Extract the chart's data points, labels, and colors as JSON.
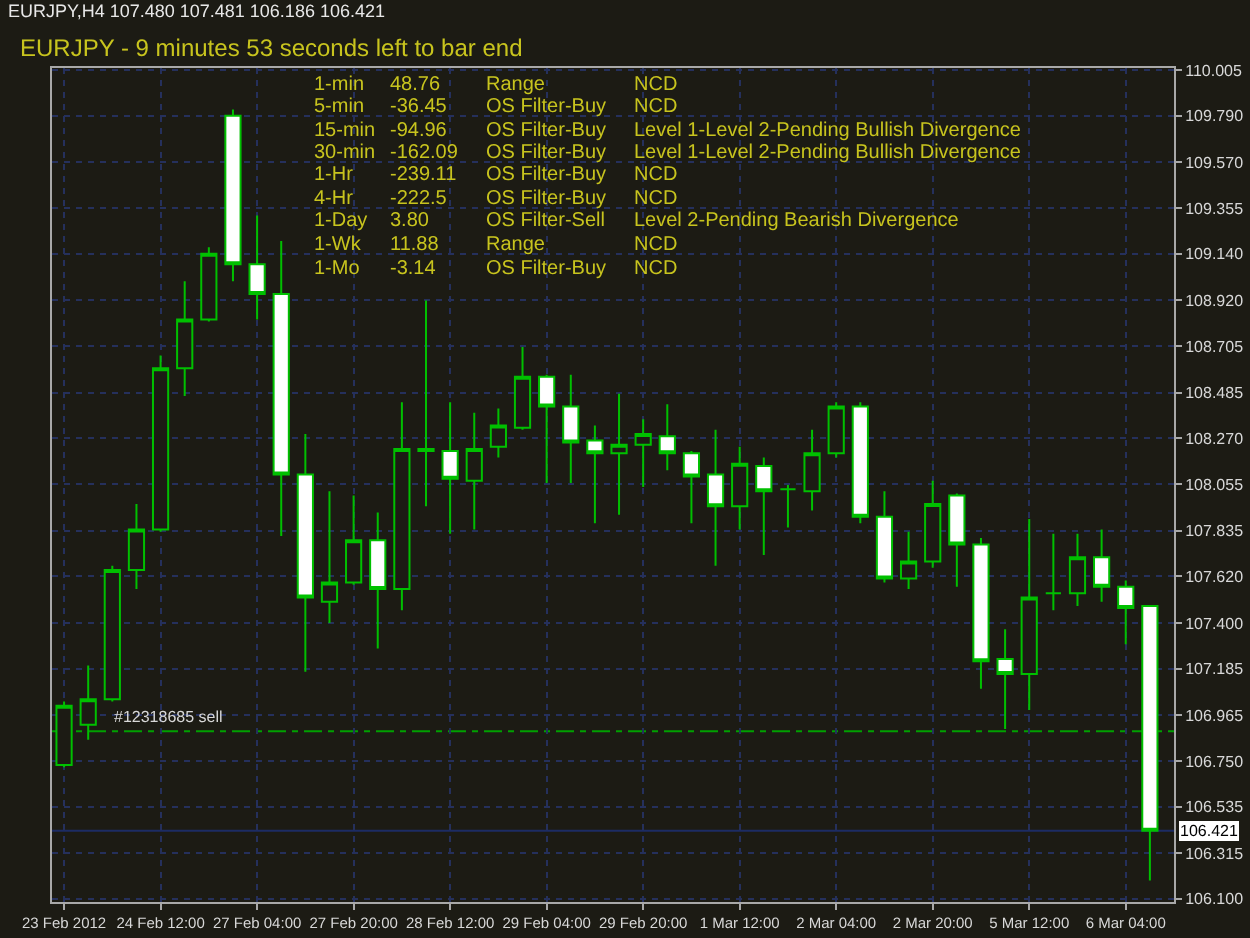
{
  "chart_data": {
    "type": "candlestick",
    "title": "EURJPY,H4 107.480 107.481 106.186 106.421",
    "subtitle": "EURJPY - 9 minutes 53 seconds left to bar end",
    "categories": [
      "23 Feb 2012",
      null,
      null,
      null,
      "24 Feb 12:00",
      null,
      null,
      null,
      "27 Feb 04:00",
      null,
      null,
      null,
      "27 Feb 20:00",
      null,
      null,
      null,
      "28 Feb 12:00",
      null,
      null,
      null,
      "29 Feb 04:00",
      null,
      null,
      null,
      "29 Feb 20:00",
      null,
      null,
      null,
      "1 Mar 12:00",
      null,
      null,
      null,
      "2 Mar 04:00",
      null,
      null,
      null,
      "2 Mar 20:00",
      null,
      null,
      null,
      "5 Mar 12:00",
      null,
      null,
      null,
      "6 Mar 04:00",
      null
    ],
    "ohlc": [
      [
        106.73,
        107.03,
        106.72,
        107.01
      ],
      [
        106.92,
        107.2,
        106.85,
        107.04
      ],
      [
        107.04,
        107.67,
        107.03,
        107.65
      ],
      [
        107.65,
        107.96,
        107.56,
        107.84
      ],
      [
        107.84,
        108.66,
        107.83,
        108.6
      ],
      [
        108.6,
        109.01,
        108.47,
        108.83
      ],
      [
        108.83,
        109.17,
        108.82,
        109.14
      ],
      [
        109.79,
        109.82,
        109.01,
        109.09
      ],
      [
        109.09,
        109.32,
        108.83,
        108.95
      ],
      [
        108.95,
        109.2,
        107.81,
        108.1
      ],
      [
        108.1,
        108.29,
        107.17,
        107.52
      ],
      [
        107.5,
        108.02,
        107.4,
        107.59
      ],
      [
        107.59,
        108.0,
        107.58,
        107.79
      ],
      [
        107.79,
        107.92,
        107.28,
        107.56
      ],
      [
        107.56,
        108.44,
        107.46,
        108.22
      ],
      [
        108.22,
        108.92,
        107.95,
        108.21
      ],
      [
        108.21,
        108.44,
        107.82,
        108.08
      ],
      [
        108.07,
        108.39,
        107.84,
        108.22
      ],
      [
        108.23,
        108.41,
        108.18,
        108.33
      ],
      [
        108.32,
        108.7,
        108.31,
        108.56
      ],
      [
        108.56,
        108.57,
        108.06,
        108.42
      ],
      [
        108.42,
        108.57,
        108.06,
        108.25
      ],
      [
        108.26,
        108.33,
        107.87,
        108.2
      ],
      [
        108.2,
        108.48,
        107.91,
        108.24
      ],
      [
        108.24,
        108.36,
        108.04,
        108.29
      ],
      [
        108.28,
        108.43,
        108.12,
        108.2
      ],
      [
        108.2,
        108.21,
        107.87,
        108.09
      ],
      [
        108.1,
        108.31,
        107.67,
        107.95
      ],
      [
        107.95,
        108.23,
        107.84,
        108.15
      ],
      [
        108.14,
        108.18,
        107.72,
        108.02
      ],
      [
        108.03,
        108.05,
        107.85,
        108.03
      ],
      [
        108.02,
        108.31,
        107.93,
        108.2
      ],
      [
        108.2,
        108.44,
        108.18,
        108.42
      ],
      [
        108.42,
        108.44,
        107.87,
        107.9
      ],
      [
        107.9,
        108.02,
        107.59,
        107.61
      ],
      [
        107.61,
        107.83,
        107.56,
        107.69
      ],
      [
        107.69,
        108.07,
        107.66,
        107.96
      ],
      [
        108.0,
        108.01,
        107.57,
        107.77
      ],
      [
        107.77,
        107.8,
        107.09,
        107.22
      ],
      [
        107.23,
        107.37,
        106.9,
        107.16
      ],
      [
        107.16,
        107.89,
        106.99,
        107.52
      ],
      [
        107.54,
        107.82,
        107.46,
        107.54
      ],
      [
        107.54,
        107.82,
        107.48,
        107.71
      ],
      [
        107.71,
        107.84,
        107.5,
        107.57
      ],
      [
        107.57,
        107.6,
        107.3,
        107.47
      ],
      [
        107.48,
        107.481,
        106.186,
        106.421
      ]
    ],
    "color": "#00c000",
    "colors": [
      "#1c1b14",
      "#1c1b14",
      "#1c1b14",
      "#1c1b14",
      "#1c1b14",
      "#1c1b14",
      "#1c1b14",
      "#ffffff",
      "#ffffff",
      "#ffffff",
      "#ffffff",
      "#1c1b14",
      "#1c1b14",
      "#ffffff",
      "#1c1b14",
      "#00c000",
      "#ffffff",
      "#1c1b14",
      "#1c1b14",
      "#1c1b14",
      "#ffffff",
      "#ffffff",
      "#ffffff",
      "#1c1b14",
      "#1c1b14",
      "#ffffff",
      "#ffffff",
      "#ffffff",
      "#1c1b14",
      "#ffffff",
      "#00c000",
      "#1c1b14",
      "#1c1b14",
      "#ffffff",
      "#ffffff",
      "#1c1b14",
      "#1c1b14",
      "#ffffff",
      "#ffffff",
      "#ffffff",
      "#1c1b14",
      "#00c000",
      "#1c1b14",
      "#ffffff",
      "#ffffff",
      "#ffffff"
    ],
    "ylim": [
      106.085,
      110.015
    ],
    "yticks": [
      110.005,
      {
        "value": 109.79,
        "label": "109.790"
      },
      {
        "value": 109.57,
        "label": "109.570"
      },
      109.355,
      {
        "value": 109.14,
        "label": "109.140"
      },
      {
        "value": 108.92,
        "label": "108.920"
      },
      108.705,
      108.485,
      {
        "value": 108.27,
        "label": "108.270"
      },
      108.055,
      107.835,
      {
        "value": 107.62,
        "label": "107.620"
      },
      {
        "value": 107.4,
        "label": "107.400"
      },
      107.185,
      106.965,
      {
        "value": 106.75,
        "label": "106.750"
      },
      106.535,
      106.315,
      {
        "value": 106.1,
        "label": "106.100"
      }
    ],
    "grid": true,
    "ref_lines": [
      {
        "axis": "y",
        "value": 106.89,
        "label": "#12318685 sell",
        "color": "#00a000",
        "line_style": "dashed"
      },
      {
        "axis": "y",
        "value": 106.421,
        "label": "106.421",
        "color": "#1c2c64",
        "line_style": "solid"
      }
    ],
    "annotations": [
      "1-min",
      "48.76",
      "Range",
      "NCD",
      "5-min",
      "-36.45",
      "OS Filter-Buy",
      "NCD",
      "15-min",
      "-94.96",
      "OS Filter-Buy",
      "Level 1-Level 2-Pending Bullish Divergence",
      "30-min",
      "-162.09",
      "OS Filter-Buy",
      "Level 1-Level 2-Pending Bullish Divergence",
      "1-Hr",
      "-239.11",
      "OS Filter-Buy",
      "NCD",
      "4-Hr",
      "-222.5",
      "OS Filter-Buy",
      "NCD",
      "1-Day",
      "3.80",
      "OS Filter-Sell",
      "Level 2-Pending Bearish Divergence",
      "1-Wk",
      "11.88",
      "Range",
      "NCD",
      "1-Mo",
      "-3.14",
      "OS Filter-Buy",
      "NCD"
    ]
  }
}
